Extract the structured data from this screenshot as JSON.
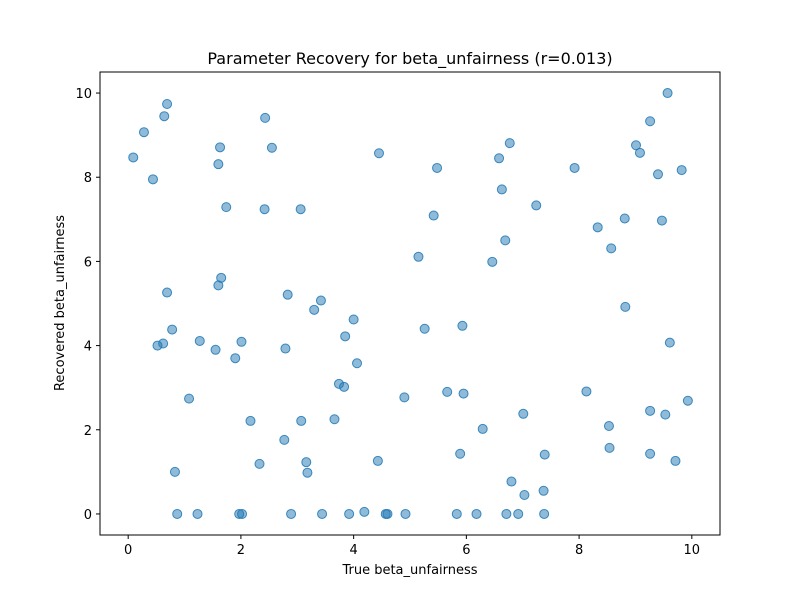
{
  "chart_data": {
    "type": "scatter",
    "title": "Parameter Recovery for beta_unfairness (r=0.013)",
    "xlabel": "True beta_unfairness",
    "ylabel": "Recovered beta_unfairness",
    "xlim": [
      -0.5,
      10.5
    ],
    "ylim": [
      -0.5,
      10.5
    ],
    "xticks": [
      0,
      2,
      4,
      6,
      8,
      10
    ],
    "yticks": [
      0,
      2,
      4,
      6,
      8,
      10
    ],
    "grid": false,
    "marker_color": "#1f77b4",
    "marker_alpha": 0.5,
    "points": [
      [
        0.09,
        8.47
      ],
      [
        0.28,
        9.07
      ],
      [
        0.44,
        7.95
      ],
      [
        0.64,
        9.45
      ],
      [
        0.69,
        9.74
      ],
      [
        0.52,
        4.0
      ],
      [
        0.62,
        4.05
      ],
      [
        0.69,
        5.26
      ],
      [
        0.78,
        4.38
      ],
      [
        0.83,
        1.0
      ],
      [
        0.87,
        0.0
      ],
      [
        1.08,
        2.74
      ],
      [
        1.23,
        0.0
      ],
      [
        1.27,
        4.11
      ],
      [
        1.55,
        3.9
      ],
      [
        1.6,
        8.31
      ],
      [
        1.63,
        8.71
      ],
      [
        1.6,
        5.43
      ],
      [
        1.65,
        5.61
      ],
      [
        1.74,
        7.29
      ],
      [
        1.9,
        3.7
      ],
      [
        1.97,
        0.0
      ],
      [
        2.01,
        4.09
      ],
      [
        2.02,
        0.0
      ],
      [
        2.17,
        2.21
      ],
      [
        2.33,
        1.19
      ],
      [
        2.42,
        7.24
      ],
      [
        2.43,
        9.41
      ],
      [
        2.55,
        8.7
      ],
      [
        2.77,
        1.76
      ],
      [
        2.79,
        3.93
      ],
      [
        2.83,
        5.21
      ],
      [
        2.89,
        0.0
      ],
      [
        3.06,
        7.24
      ],
      [
        3.07,
        2.21
      ],
      [
        3.16,
        1.23
      ],
      [
        3.18,
        0.98
      ],
      [
        3.3,
        4.85
      ],
      [
        3.42,
        5.07
      ],
      [
        3.44,
        0.0
      ],
      [
        3.66,
        2.25
      ],
      [
        3.74,
        3.09
      ],
      [
        3.83,
        3.02
      ],
      [
        3.85,
        4.22
      ],
      [
        3.92,
        0.0
      ],
      [
        4.0,
        4.62
      ],
      [
        4.06,
        3.58
      ],
      [
        4.19,
        0.05
      ],
      [
        4.43,
        1.26
      ],
      [
        4.45,
        8.57
      ],
      [
        4.57,
        0.0
      ],
      [
        4.6,
        0.0
      ],
      [
        4.9,
        2.77
      ],
      [
        4.92,
        0.0
      ],
      [
        5.15,
        6.11
      ],
      [
        5.26,
        4.4
      ],
      [
        5.42,
        7.09
      ],
      [
        5.48,
        8.22
      ],
      [
        5.66,
        2.9
      ],
      [
        5.83,
        0.0
      ],
      [
        5.89,
        1.43
      ],
      [
        5.93,
        4.47
      ],
      [
        5.95,
        2.86
      ],
      [
        6.18,
        0.0
      ],
      [
        6.29,
        2.02
      ],
      [
        6.46,
        5.99
      ],
      [
        6.58,
        8.45
      ],
      [
        6.63,
        7.71
      ],
      [
        6.69,
        6.5
      ],
      [
        6.71,
        0.0
      ],
      [
        6.77,
        8.81
      ],
      [
        6.8,
        0.77
      ],
      [
        6.92,
        0.0
      ],
      [
        7.01,
        2.38
      ],
      [
        7.03,
        0.45
      ],
      [
        7.24,
        7.33
      ],
      [
        7.37,
        0.55
      ],
      [
        7.38,
        0.0
      ],
      [
        7.39,
        1.41
      ],
      [
        7.92,
        8.22
      ],
      [
        8.13,
        2.91
      ],
      [
        8.33,
        6.81
      ],
      [
        8.53,
        2.09
      ],
      [
        8.54,
        1.57
      ],
      [
        8.57,
        6.31
      ],
      [
        8.81,
        7.02
      ],
      [
        8.82,
        4.92
      ],
      [
        9.01,
        8.76
      ],
      [
        9.08,
        8.58
      ],
      [
        9.26,
        9.33
      ],
      [
        9.26,
        2.45
      ],
      [
        9.26,
        1.43
      ],
      [
        9.4,
        8.07
      ],
      [
        9.47,
        6.97
      ],
      [
        9.53,
        2.36
      ],
      [
        9.57,
        10.0
      ],
      [
        9.61,
        4.07
      ],
      [
        9.71,
        1.26
      ],
      [
        9.82,
        8.17
      ],
      [
        9.93,
        2.69
      ]
    ]
  }
}
